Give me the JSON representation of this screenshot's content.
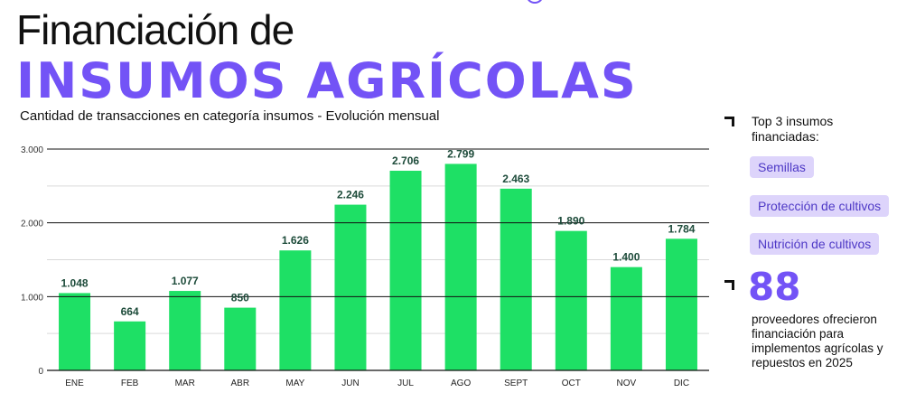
{
  "header": {
    "title_line1": "Financiación de",
    "title_line2": "INSUMOS AGRÍCOLAS",
    "subtitle": "Cantidad de transacciones en categoría insumos - Evolución mensual"
  },
  "sidebar": {
    "top3_label": "Top 3 insumos financiadas:",
    "top3_items": [
      "Semillas",
      "Protección de cultivos",
      "Nutrición de cultivos"
    ],
    "stat_number": "88",
    "stat_description": "proveedores ofrecieron financiación para implementos agrícolas y repuestos en 2025"
  },
  "colors": {
    "bar": "#1EE065",
    "accent": "#7353F6",
    "pill_bg": "#DDD4FB",
    "label_dark": "#1D4B3A"
  },
  "chart_data": {
    "type": "bar",
    "title": "Cantidad de transacciones en categoría insumos - Evolución mensual",
    "xlabel": "",
    "ylabel": "",
    "categories": [
      "ENE",
      "FEB",
      "MAR",
      "ABR",
      "MAY",
      "JUN",
      "JUL",
      "AGO",
      "SEPT",
      "OCT",
      "NOV",
      "DIC"
    ],
    "values": [
      1048,
      664,
      1077,
      850,
      1626,
      2246,
      2706,
      2799,
      2463,
      1890,
      1400,
      1784
    ],
    "value_labels": [
      "1.048",
      "664",
      "1.077",
      "850",
      "1.626",
      "2.246",
      "2.706",
      "2.799",
      "2.463",
      "1.890",
      "1.400",
      "1.784"
    ],
    "ylim": [
      0,
      3000
    ],
    "yticks": [
      0,
      1000,
      2000,
      3000
    ],
    "ytick_labels": [
      "0",
      "1.000",
      "2.000",
      "3.000"
    ],
    "grid": true
  }
}
